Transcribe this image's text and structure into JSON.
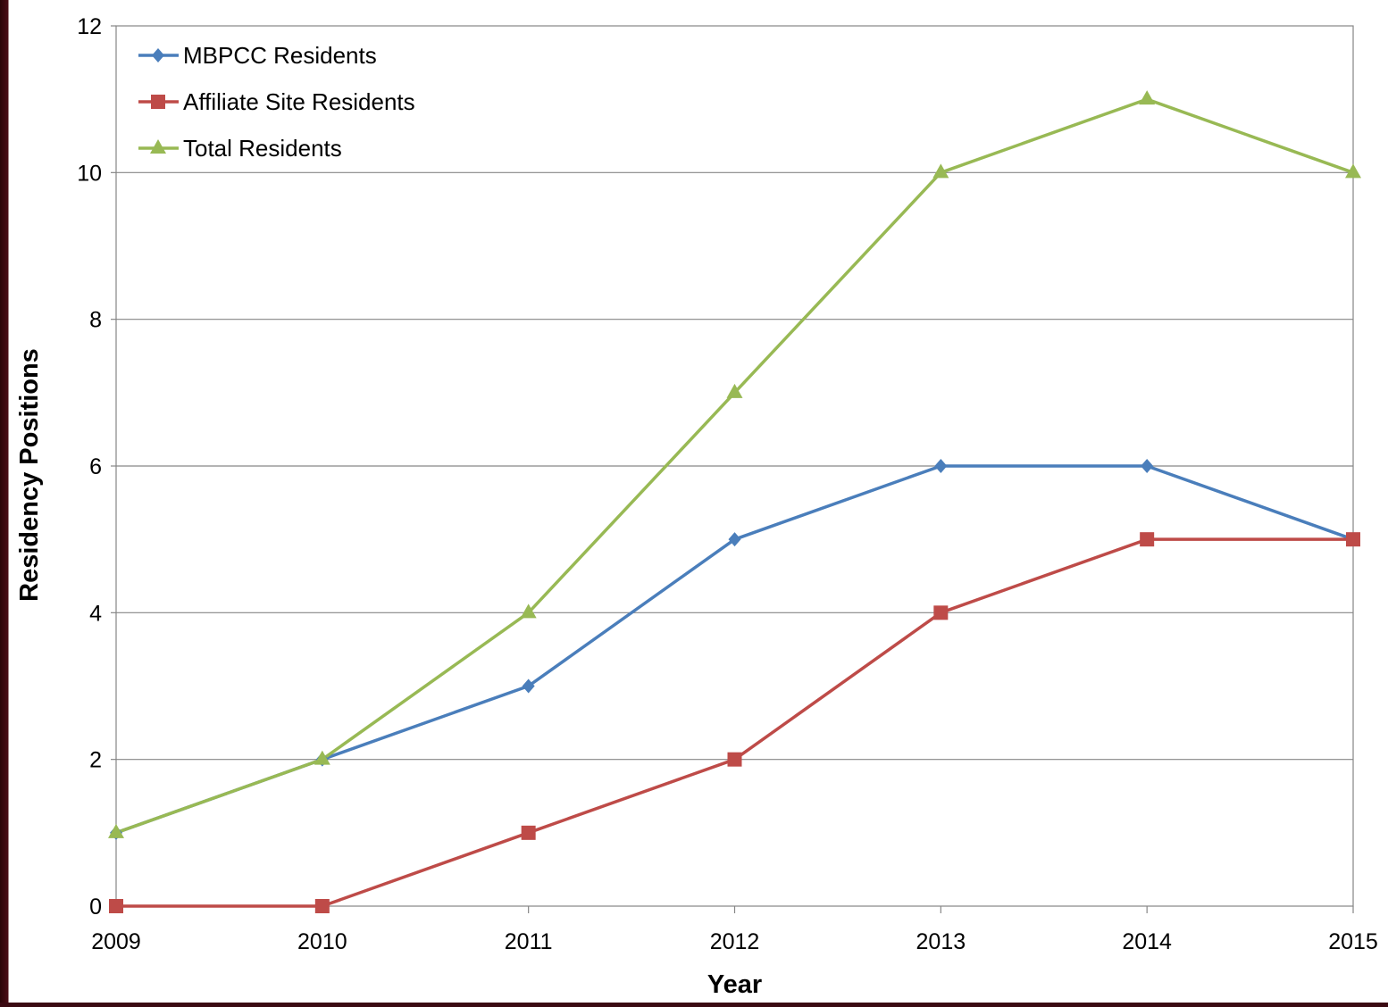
{
  "chart_data": {
    "type": "line",
    "title": "",
    "xlabel": "Year",
    "ylabel": "Residency Positions",
    "x": [
      2009,
      2010,
      2011,
      2012,
      2013,
      2014,
      2015
    ],
    "xlim": [
      2009,
      2015
    ],
    "ylim": [
      0,
      12
    ],
    "yticks": [
      0,
      2,
      4,
      6,
      8,
      10,
      12
    ],
    "grid": true,
    "legend_position": "top-left",
    "series": [
      {
        "name": "MBPCC Residents",
        "color": "#4a7ebb",
        "marker": "diamond",
        "values": [
          1,
          2,
          3,
          5,
          6,
          6,
          5
        ]
      },
      {
        "name": "Affiliate Site Residents",
        "color": "#be4b48",
        "marker": "square",
        "values": [
          0,
          0,
          1,
          2,
          4,
          5,
          5
        ]
      },
      {
        "name": "Total Residents",
        "color": "#98b954",
        "marker": "triangle",
        "values": [
          1,
          2,
          4,
          7,
          10,
          11,
          10
        ]
      }
    ]
  }
}
